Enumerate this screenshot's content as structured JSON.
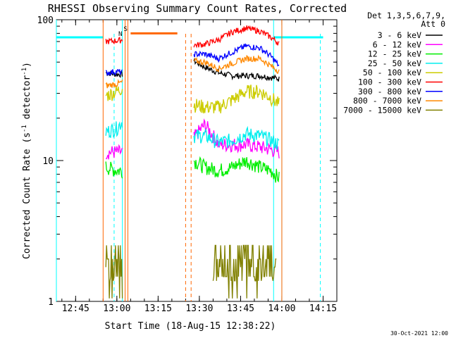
{
  "chart_data": {
    "type": "line",
    "title": "RHESSI Observing Summary Count Rates, Corrected",
    "xlabel": "Start Time (18-Aug-15 12:38:22)",
    "ylabel": "Corrected Count Rate (s⁻¹ detector⁻¹)",
    "y_scale": "log",
    "ylim": [
      1,
      100
    ],
    "xlim": [
      "12:38",
      "14:20"
    ],
    "x_ticks": [
      "12:45",
      "13:00",
      "13:15",
      "13:30",
      "13:45",
      "14:00",
      "14:15"
    ],
    "y_ticks": [
      "1",
      "10",
      "100"
    ],
    "legend_header": [
      "Det 1,3,5,6,7,9,",
      "Att 0"
    ],
    "footer_date": "30-Oct-2021 12:00",
    "flag_labels": [
      "N",
      "S"
    ],
    "data_gaps": [
      [
        "12:38",
        "12:55"
      ],
      [
        "13:03",
        "13:27"
      ],
      [
        "14:00",
        "14:20"
      ]
    ],
    "series": [
      {
        "name": "3 - 6 keV",
        "color": "#000000",
        "x": [
          "12:56",
          "13:00",
          "13:02",
          "13:28",
          "13:32",
          "13:37",
          "13:42",
          "13:47",
          "13:52",
          "13:56",
          "13:59"
        ],
        "values": [
          42,
          41,
          41,
          51,
          46,
          42,
          40,
          40,
          40,
          39,
          38
        ]
      },
      {
        "name": "6 - 12 keV",
        "color": "#ff00ff",
        "x": [
          "12:56",
          "13:00",
          "13:02",
          "13:28",
          "13:32",
          "13:37",
          "13:42",
          "13:47",
          "13:52",
          "13:56",
          "13:59"
        ],
        "values": [
          11.5,
          11.5,
          11.5,
          14.5,
          18,
          13,
          13,
          13,
          12.5,
          12,
          11.5
        ]
      },
      {
        "name": "12 - 25 keV",
        "color": "#00ee00",
        "x": [
          "12:56",
          "13:00",
          "13:02",
          "13:28",
          "13:32",
          "13:37",
          "13:42",
          "13:47",
          "13:52",
          "13:56",
          "13:59"
        ],
        "values": [
          9,
          8.5,
          8.5,
          10,
          9,
          8.5,
          9,
          10,
          9,
          8.5,
          7.5
        ]
      },
      {
        "name": "25 - 50 keV",
        "color": "#00eeee",
        "x": [
          "12:56",
          "13:00",
          "13:02",
          "13:28",
          "13:32",
          "13:37",
          "13:42",
          "13:47",
          "13:52",
          "13:56",
          "13:59"
        ],
        "values": [
          16,
          17,
          19,
          15,
          15,
          13.5,
          14,
          15.5,
          15,
          14,
          13
        ]
      },
      {
        "name": "50 - 100 keV",
        "color": "#cccc00",
        "x": [
          "12:56",
          "13:00",
          "13:02",
          "13:28",
          "13:32",
          "13:37",
          "13:42",
          "13:47",
          "13:52",
          "13:56",
          "13:59"
        ],
        "values": [
          29,
          31,
          33,
          25,
          24,
          24,
          27,
          31,
          31,
          28,
          25
        ]
      },
      {
        "name": "100 - 300 keV",
        "color": "#ff0000",
        "x": [
          "12:56",
          "13:00",
          "13:02",
          "13:28",
          "13:32",
          "13:37",
          "13:42",
          "13:47",
          "13:52",
          "13:56",
          "13:59"
        ],
        "values": [
          70,
          71,
          72,
          66,
          67,
          72,
          82,
          87,
          83,
          75,
          68
        ]
      },
      {
        "name": "300 - 800 keV",
        "color": "#0000ff",
        "x": [
          "12:56",
          "13:00",
          "13:02",
          "13:28",
          "13:32",
          "13:37",
          "13:42",
          "13:47",
          "13:52",
          "13:56",
          "13:59"
        ],
        "values": [
          42,
          43,
          42,
          57,
          57,
          53,
          59,
          65,
          63,
          55,
          47
        ]
      },
      {
        "name": "800 - 7000 keV",
        "color": "#ff8800",
        "x": [
          "12:56",
          "13:00",
          "13:02",
          "13:28",
          "13:32",
          "13:37",
          "13:42",
          "13:47",
          "13:52",
          "13:56",
          "13:59"
        ],
        "values": [
          34,
          35,
          36,
          51,
          50,
          45,
          49,
          53,
          53,
          47,
          43
        ]
      },
      {
        "name": "7000 - 15000 keV",
        "color": "#808000",
        "x": [
          "12:56",
          "13:00",
          "13:02",
          "13:35",
          "13:40",
          "13:45",
          "13:50",
          "13:54",
          "13:58"
        ],
        "values": [
          1.5,
          2,
          1.5,
          1.5,
          2,
          2.5,
          2.5,
          2,
          1.5
        ]
      }
    ],
    "markers": {
      "cyan_flag": {
        "color": "#00ffff",
        "level": 75,
        "segments": [
          [
            "12:38",
            "12:55"
          ],
          [
            "13:57",
            "14:15"
          ]
        ],
        "vlines_solid": [
          "12:38",
          "13:02",
          "13:57",
          "14:00"
        ],
        "vlines_dashed": [
          "12:59",
          "14:14"
        ]
      },
      "orange_flag": {
        "color": "#ff6600",
        "level": 80,
        "segments": [
          [
            "13:05",
            "13:22"
          ]
        ],
        "vlines_solid": [
          "12:55",
          "13:03",
          "13:04",
          "14:00"
        ],
        "vlines_dashed": [
          "13:25",
          "13:27"
        ]
      }
    }
  }
}
